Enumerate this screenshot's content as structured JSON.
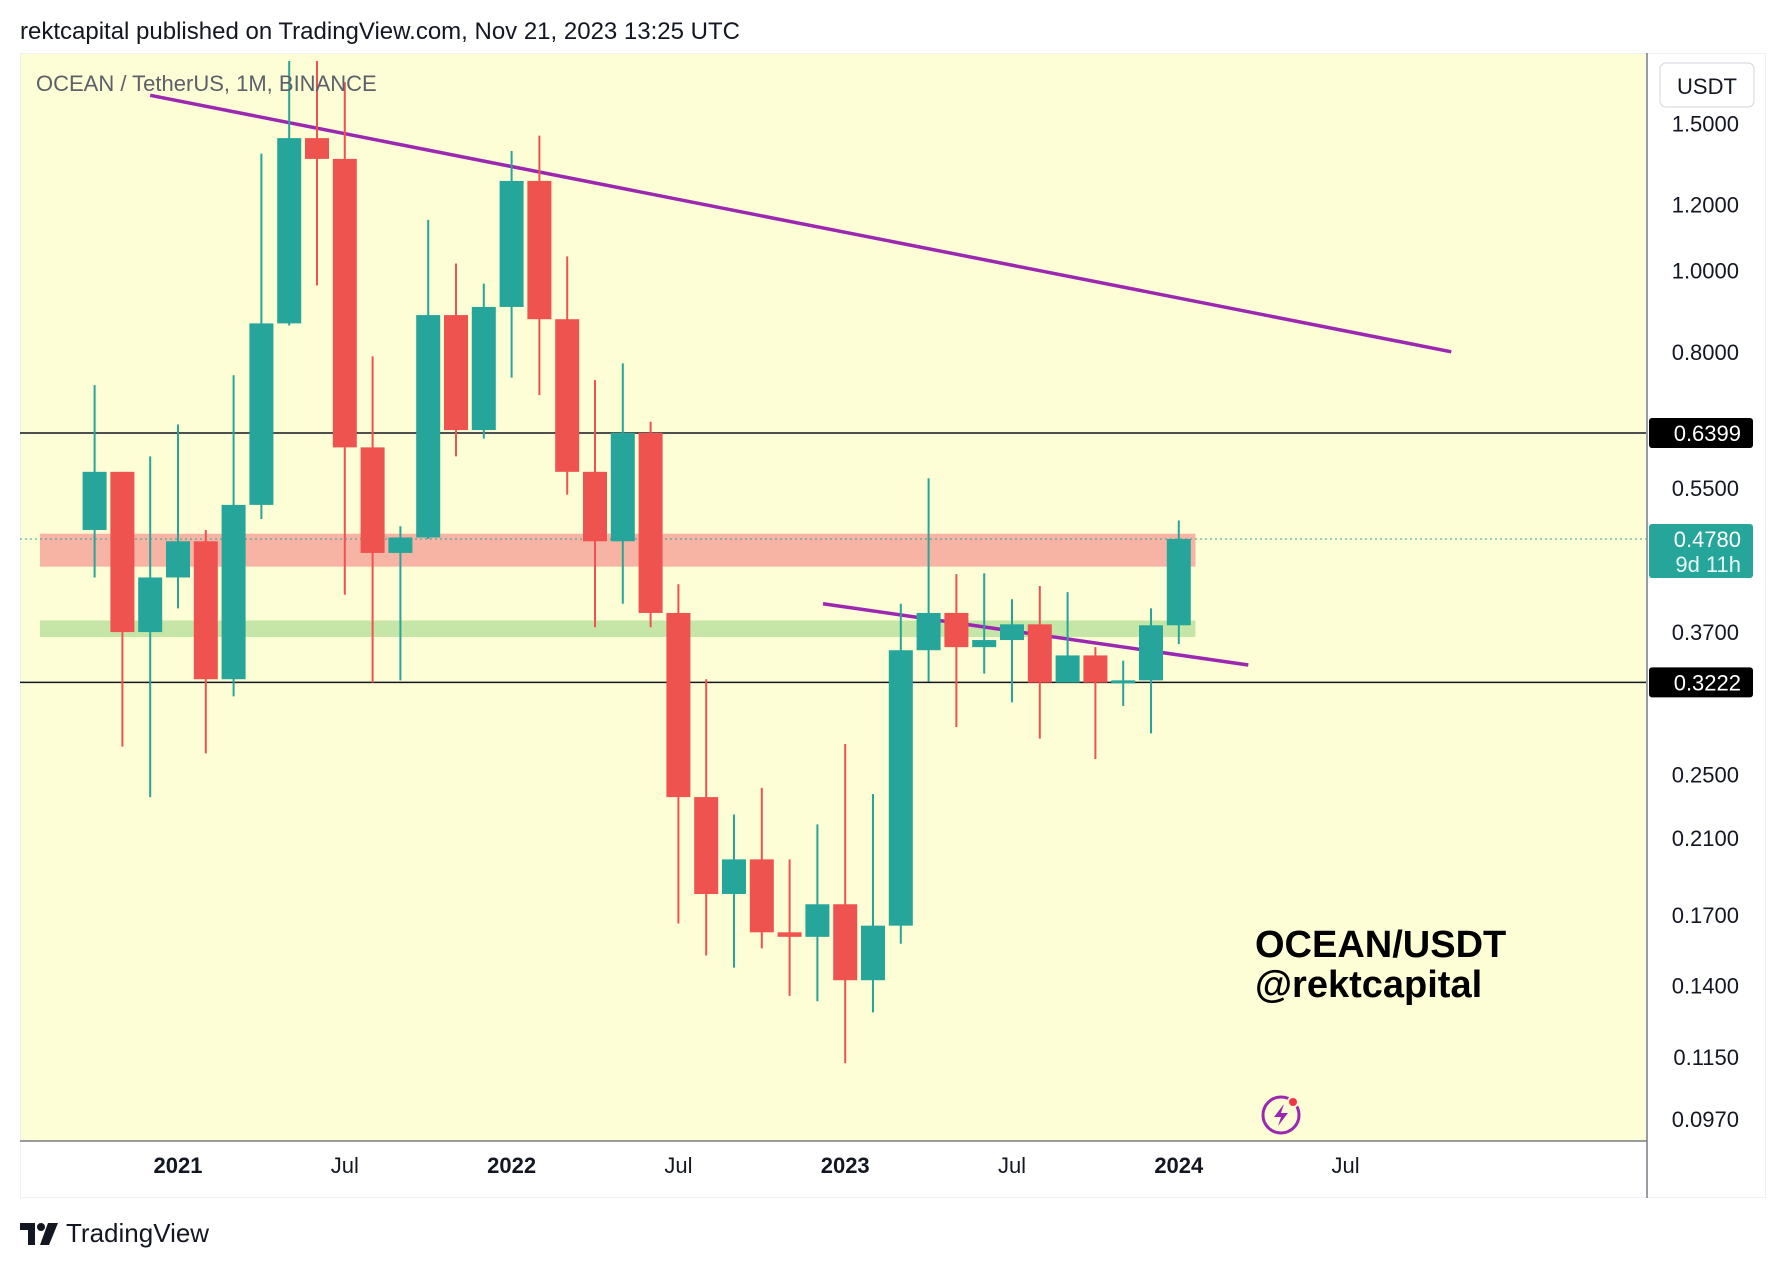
{
  "header": "rektcapital published on TradingView.com, Nov 21, 2023 13:25 UTC",
  "footer": {
    "brand": "TradingView"
  },
  "chart_data": {
    "type": "candlestick",
    "title": "OCEAN / TetherUS, 1M, BINANCE",
    "currency": "USDT",
    "watermark": [
      "OCEAN/USDT",
      "@rektcapital"
    ],
    "y_scale": "log",
    "ylim": [
      0.092,
      1.8
    ],
    "y_ticks": [
      "1.5000",
      "1.2000",
      "1.0000",
      "0.8000",
      "0.5500",
      "0.3700",
      "0.2500",
      "0.2100",
      "0.1700",
      "0.1400",
      "0.1150",
      "0.0970"
    ],
    "x_ticks": [
      {
        "label": "2021",
        "month": 0,
        "bold": true
      },
      {
        "label": "Jul",
        "month": 6,
        "bold": false
      },
      {
        "label": "2022",
        "month": 12,
        "bold": true
      },
      {
        "label": "Jul",
        "month": 18,
        "bold": false
      },
      {
        "label": "2023",
        "month": 24,
        "bold": true
      },
      {
        "label": "Jul",
        "month": 30,
        "bold": false
      },
      {
        "label": "2024",
        "month": 36,
        "bold": true
      },
      {
        "label": "Jul",
        "month": 42,
        "bold": false
      }
    ],
    "price_labels": [
      {
        "value": 0.6399,
        "text": "0.6399",
        "style": "black"
      },
      {
        "value": 0.478,
        "text": "0.4780",
        "sub": "9d 11h",
        "style": "teal"
      },
      {
        "value": 0.3222,
        "text": "0.3222",
        "style": "black"
      }
    ],
    "horizontal_lines": [
      0.6399,
      0.3222
    ],
    "current_price": 0.478,
    "zones": [
      {
        "low": 0.443,
        "high": 0.485,
        "color": "#f7b4a4"
      },
      {
        "low": 0.365,
        "high": 0.382,
        "color": "#c6e6a8"
      }
    ],
    "trendlines": [
      {
        "from": [
          -1,
          1.62
        ],
        "to": [
          45.8,
          0.8
        ],
        "color": "#9c27b0"
      },
      {
        "from": [
          23.2,
          0.4
        ],
        "to": [
          38.5,
          0.338
        ],
        "color": "#9c27b0"
      }
    ],
    "candles": [
      {
        "month": -3,
        "open": 0.49,
        "high": 0.73,
        "low": 0.43,
        "close": 0.575
      },
      {
        "month": -2,
        "open": 0.575,
        "high": 0.575,
        "low": 0.27,
        "close": 0.37
      },
      {
        "month": -1,
        "open": 0.37,
        "high": 0.6,
        "low": 0.235,
        "close": 0.43
      },
      {
        "month": 0,
        "open": 0.43,
        "high": 0.655,
        "low": 0.395,
        "close": 0.475
      },
      {
        "month": 1,
        "open": 0.475,
        "high": 0.49,
        "low": 0.265,
        "close": 0.325
      },
      {
        "month": 2,
        "open": 0.325,
        "high": 0.75,
        "low": 0.31,
        "close": 0.525
      },
      {
        "month": 3,
        "open": 0.525,
        "high": 1.38,
        "low": 0.505,
        "close": 0.865
      },
      {
        "month": 4,
        "open": 0.865,
        "high": 1.78,
        "low": 0.86,
        "close": 1.44
      },
      {
        "month": 5,
        "open": 1.44,
        "high": 1.78,
        "low": 0.96,
        "close": 1.36
      },
      {
        "month": 6,
        "open": 1.36,
        "high": 1.68,
        "low": 0.41,
        "close": 0.615
      },
      {
        "month": 7,
        "open": 0.615,
        "high": 0.79,
        "low": 0.322,
        "close": 0.46
      },
      {
        "month": 8,
        "open": 0.46,
        "high": 0.495,
        "low": 0.324,
        "close": 0.48
      },
      {
        "month": 9,
        "open": 0.48,
        "high": 1.15,
        "low": 0.478,
        "close": 0.885
      },
      {
        "month": 10,
        "open": 0.885,
        "high": 1.02,
        "low": 0.6,
        "close": 0.645
      },
      {
        "month": 11,
        "open": 0.645,
        "high": 0.965,
        "low": 0.63,
        "close": 0.905
      },
      {
        "month": 12,
        "open": 0.905,
        "high": 1.39,
        "low": 0.745,
        "close": 1.28
      },
      {
        "month": 13,
        "open": 1.28,
        "high": 1.45,
        "low": 0.71,
        "close": 0.875
      },
      {
        "month": 14,
        "open": 0.875,
        "high": 1.04,
        "low": 0.54,
        "close": 0.575
      },
      {
        "month": 15,
        "open": 0.575,
        "high": 0.74,
        "low": 0.375,
        "close": 0.475
      },
      {
        "month": 16,
        "open": 0.475,
        "high": 0.775,
        "low": 0.4,
        "close": 0.64
      },
      {
        "month": 17,
        "open": 0.64,
        "high": 0.66,
        "low": 0.375,
        "close": 0.39
      },
      {
        "month": 18,
        "open": 0.39,
        "high": 0.422,
        "low": 0.166,
        "close": 0.235
      },
      {
        "month": 19,
        "open": 0.235,
        "high": 0.325,
        "low": 0.152,
        "close": 0.18
      },
      {
        "month": 20,
        "open": 0.18,
        "high": 0.224,
        "low": 0.147,
        "close": 0.198
      },
      {
        "month": 21,
        "open": 0.198,
        "high": 0.241,
        "low": 0.155,
        "close": 0.162
      },
      {
        "month": 22,
        "open": 0.162,
        "high": 0.198,
        "low": 0.136,
        "close": 0.16
      },
      {
        "month": 23,
        "open": 0.16,
        "high": 0.218,
        "low": 0.134,
        "close": 0.175
      },
      {
        "month": 24,
        "open": 0.175,
        "high": 0.272,
        "low": 0.113,
        "close": 0.142
      },
      {
        "month": 25,
        "open": 0.142,
        "high": 0.237,
        "low": 0.13,
        "close": 0.165
      },
      {
        "month": 26,
        "open": 0.165,
        "high": 0.4,
        "low": 0.157,
        "close": 0.352
      },
      {
        "month": 27,
        "open": 0.352,
        "high": 0.565,
        "low": 0.323,
        "close": 0.39
      },
      {
        "month": 28,
        "open": 0.39,
        "high": 0.434,
        "low": 0.285,
        "close": 0.355
      },
      {
        "month": 29,
        "open": 0.355,
        "high": 0.435,
        "low": 0.33,
        "close": 0.362
      },
      {
        "month": 30,
        "open": 0.362,
        "high": 0.405,
        "low": 0.305,
        "close": 0.378
      },
      {
        "month": 31,
        "open": 0.378,
        "high": 0.42,
        "low": 0.276,
        "close": 0.322
      },
      {
        "month": 32,
        "open": 0.322,
        "high": 0.413,
        "low": 0.323,
        "close": 0.347
      },
      {
        "month": 33,
        "open": 0.347,
        "high": 0.355,
        "low": 0.261,
        "close": 0.322
      },
      {
        "month": 34,
        "open": 0.322,
        "high": 0.342,
        "low": 0.302,
        "close": 0.324
      },
      {
        "month": 35,
        "open": 0.324,
        "high": 0.395,
        "low": 0.28,
        "close": 0.377
      },
      {
        "month": 36,
        "open": 0.377,
        "high": 0.503,
        "low": 0.358,
        "close": 0.478
      }
    ]
  }
}
